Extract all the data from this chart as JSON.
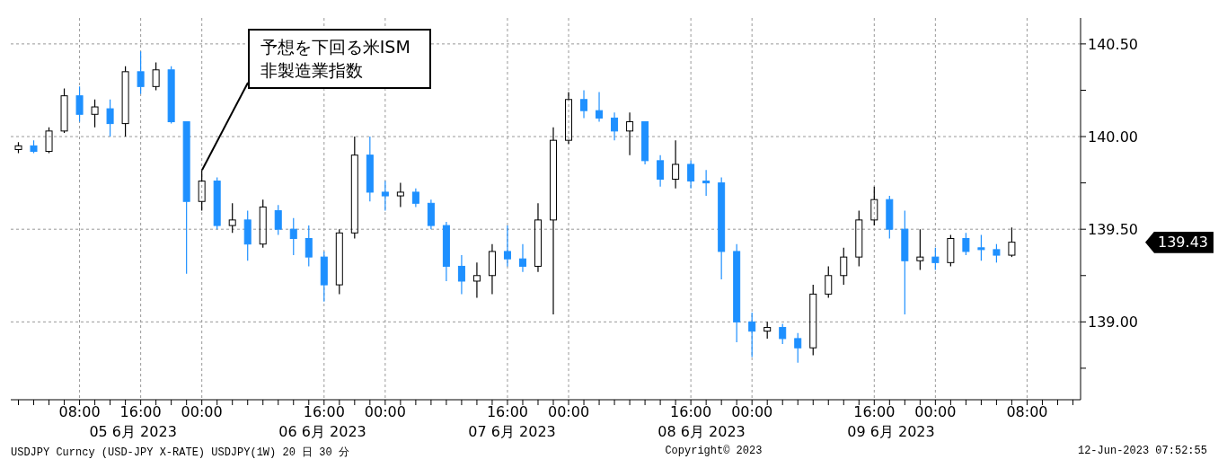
{
  "chart_data": {
    "type": "candlestick",
    "categories": [
      null,
      null,
      null,
      null,
      "08:00",
      null,
      null,
      null,
      "16:00",
      null,
      null,
      null,
      "00:00",
      null,
      null,
      null,
      null,
      null,
      null,
      null,
      "16:00",
      null,
      null,
      null,
      "00:00",
      null,
      null,
      null,
      null,
      null,
      null,
      null,
      "16:00",
      null,
      null,
      null,
      "00:00",
      null,
      null,
      null,
      null,
      null,
      null,
      null,
      "16:00",
      null,
      null,
      null,
      "00:00",
      null,
      null,
      null,
      null,
      null,
      null,
      null,
      "16:00",
      null,
      null,
      null,
      "00:00",
      null,
      null,
      null,
      null,
      null,
      "08:00",
      null,
      null,
      null
    ],
    "ohlc": [
      [
        139.93,
        139.97,
        139.91,
        139.95
      ],
      [
        139.95,
        139.98,
        139.91,
        139.92
      ],
      [
        139.92,
        140.05,
        139.91,
        140.03
      ],
      [
        140.03,
        140.26,
        140.02,
        140.22
      ],
      [
        140.22,
        140.27,
        140.08,
        140.12
      ],
      [
        140.12,
        140.2,
        140.05,
        140.16
      ],
      [
        140.15,
        140.2,
        140.0,
        140.07
      ],
      [
        140.07,
        140.38,
        140.0,
        140.35
      ],
      [
        140.35,
        140.46,
        140.23,
        140.27
      ],
      [
        140.27,
        140.4,
        140.25,
        140.36
      ],
      [
        140.36,
        140.38,
        140.07,
        140.08
      ],
      [
        140.08,
        140.08,
        139.26,
        139.65
      ],
      [
        139.65,
        139.82,
        139.6,
        139.76
      ],
      [
        139.76,
        139.78,
        139.5,
        139.52
      ],
      [
        139.52,
        139.64,
        139.48,
        139.55
      ],
      [
        139.55,
        139.6,
        139.33,
        139.42
      ],
      [
        139.42,
        139.66,
        139.4,
        139.62
      ],
      [
        139.6,
        139.63,
        139.47,
        139.5
      ],
      [
        139.5,
        139.56,
        139.36,
        139.45
      ],
      [
        139.45,
        139.52,
        139.3,
        139.35
      ],
      [
        139.35,
        139.38,
        139.11,
        139.2
      ],
      [
        139.2,
        139.5,
        139.15,
        139.48
      ],
      [
        139.48,
        140.0,
        139.45,
        139.9
      ],
      [
        139.9,
        140.0,
        139.65,
        139.7
      ],
      [
        139.7,
        139.76,
        139.6,
        139.68
      ],
      [
        139.68,
        139.75,
        139.62,
        139.7
      ],
      [
        139.7,
        139.72,
        139.62,
        139.64
      ],
      [
        139.64,
        139.66,
        139.5,
        139.52
      ],
      [
        139.52,
        139.54,
        139.22,
        139.3
      ],
      [
        139.3,
        139.36,
        139.15,
        139.22
      ],
      [
        139.22,
        139.32,
        139.13,
        139.25
      ],
      [
        139.25,
        139.42,
        139.15,
        139.38
      ],
      [
        139.38,
        139.52,
        139.3,
        139.34
      ],
      [
        139.34,
        139.42,
        139.27,
        139.3
      ],
      [
        139.3,
        139.64,
        139.27,
        139.55
      ],
      [
        139.55,
        140.05,
        139.04,
        139.98
      ],
      [
        139.98,
        140.24,
        139.96,
        140.2
      ],
      [
        140.2,
        140.25,
        140.1,
        140.14
      ],
      [
        140.14,
        140.24,
        140.08,
        140.1
      ],
      [
        140.1,
        140.13,
        139.98,
        140.03
      ],
      [
        140.03,
        140.13,
        139.9,
        140.08
      ],
      [
        140.08,
        140.08,
        139.85,
        139.87
      ],
      [
        139.87,
        139.9,
        139.73,
        139.77
      ],
      [
        139.77,
        139.98,
        139.72,
        139.85
      ],
      [
        139.85,
        139.87,
        139.72,
        139.76
      ],
      [
        139.76,
        139.82,
        139.68,
        139.75
      ],
      [
        139.75,
        139.78,
        139.23,
        139.38
      ],
      [
        139.38,
        139.42,
        138.89,
        139.0
      ],
      [
        139.0,
        139.05,
        138.81,
        138.95
      ],
      [
        138.95,
        139.0,
        138.91,
        138.97
      ],
      [
        138.97,
        138.99,
        138.88,
        138.91
      ],
      [
        138.91,
        138.94,
        138.78,
        138.86
      ],
      [
        138.86,
        139.2,
        138.82,
        139.15
      ],
      [
        139.15,
        139.3,
        139.13,
        139.25
      ],
      [
        139.25,
        139.4,
        139.2,
        139.35
      ],
      [
        139.35,
        139.6,
        139.3,
        139.55
      ],
      [
        139.55,
        139.73,
        139.52,
        139.66
      ],
      [
        139.66,
        139.68,
        139.45,
        139.5
      ],
      [
        139.5,
        139.6,
        139.04,
        139.33
      ],
      [
        139.33,
        139.5,
        139.28,
        139.35
      ],
      [
        139.35,
        139.4,
        139.28,
        139.32
      ],
      [
        139.32,
        139.47,
        139.3,
        139.45
      ],
      [
        139.45,
        139.48,
        139.36,
        139.38
      ],
      [
        139.4,
        139.47,
        139.33,
        139.39
      ],
      [
        139.39,
        139.42,
        139.32,
        139.36
      ],
      [
        139.36,
        139.51,
        139.35,
        139.43
      ],
      null,
      null,
      null,
      null
    ],
    "colors": [
      "#000000",
      "#1e90ff",
      "#000000",
      "#000000",
      "#1e90ff",
      "#000000",
      "#1e90ff",
      "#000000",
      "#1e90ff",
      "#000000",
      "#1e90ff",
      "#1e90ff",
      "#000000",
      "#1e90ff",
      "#000000",
      "#1e90ff",
      "#000000",
      "#1e90ff",
      "#1e90ff",
      "#1e90ff",
      "#1e90ff",
      "#000000",
      "#000000",
      "#1e90ff",
      "#1e90ff",
      "#000000",
      "#1e90ff",
      "#1e90ff",
      "#1e90ff",
      "#1e90ff",
      "#000000",
      "#000000",
      "#1e90ff",
      "#1e90ff",
      "#000000",
      "#000000",
      "#000000",
      "#1e90ff",
      "#1e90ff",
      "#1e90ff",
      "#000000",
      "#1e90ff",
      "#1e90ff",
      "#000000",
      "#1e90ff",
      "#1e90ff",
      "#1e90ff",
      "#1e90ff",
      "#1e90ff",
      "#000000",
      "#1e90ff",
      "#1e90ff",
      "#000000",
      "#000000",
      "#000000",
      "#000000",
      "#000000",
      "#1e90ff",
      "#1e90ff",
      "#000000",
      "#1e90ff",
      "#000000",
      "#1e90ff",
      "#1e90ff",
      "#1e90ff",
      "#000000",
      null,
      null,
      null,
      null
    ],
    "ylim": [
      138.58,
      140.64
    ],
    "yticks": [
      {
        "value": 138.75,
        "label": null
      },
      {
        "value": 139,
        "label": "139.00"
      },
      {
        "value": 139.25,
        "label": null
      },
      {
        "value": 139.5,
        "label": "139.50"
      },
      {
        "value": 139.75,
        "label": null
      },
      {
        "value": 140,
        "label": "140.00"
      },
      {
        "value": 140.25,
        "label": null
      },
      {
        "value": 140.5,
        "label": "140.50"
      }
    ],
    "grid": true,
    "annotations": [
      {
        "text": "予想を下回る米ISM非製造業指数",
        "x": "00:00",
        "y": 139.82
      },
      "139.43",
      "05 6月 2023",
      "06 6月 2023",
      "07 6月 2023",
      "08 6月 2023",
      "09 6月 2023",
      "USDJPY Curncy (USD-JPY X-RATE) USDJPY(1W) 20 日 30 分",
      "Copyright© 2023",
      "12-Jun-2023 07:52:55"
    ]
  }
}
